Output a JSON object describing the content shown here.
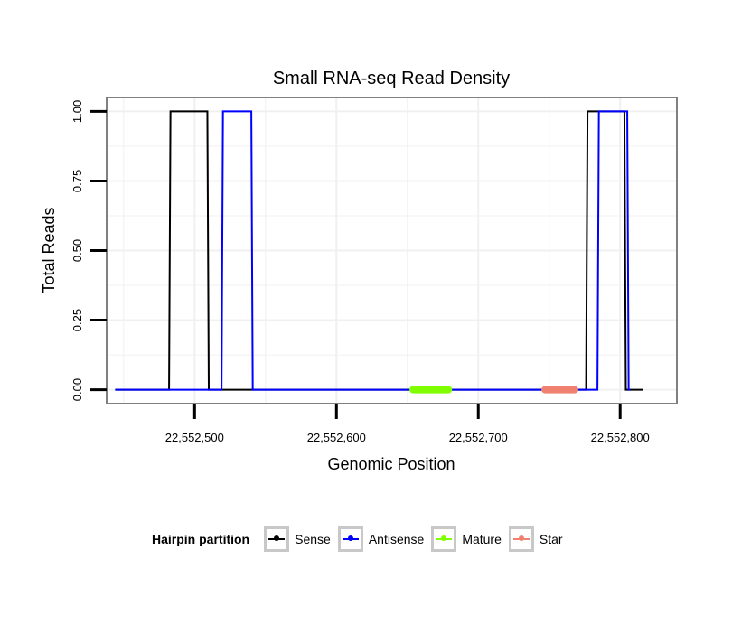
{
  "colors": {
    "sense": "#000000",
    "antisense": "#0000ff",
    "mature": "#7fff00",
    "star": "#f08070",
    "panel_border": "#808080",
    "grid": "#f0f0f0",
    "legend_key_border": "#c8c8c8"
  },
  "chart_data": {
    "type": "line",
    "title": "Small RNA-seq Read Density",
    "xlabel": "Genomic Position",
    "ylabel": "Total Reads",
    "xlim": [
      22552438,
      22552840
    ],
    "ylim": [
      -0.05,
      1.05
    ],
    "x_ticks": [
      22552500,
      22552600,
      22552700,
      22552800
    ],
    "x_tick_labels": [
      "22,552,500",
      "22,552,600",
      "22,552,700",
      "22,552,800"
    ],
    "y_ticks": [
      0,
      0.25,
      0.5,
      0.75,
      1
    ],
    "y_tick_labels": [
      "0.00",
      "0.25",
      "0.50",
      "0.75",
      "1.00"
    ],
    "grid": true,
    "series": [
      {
        "name": "Sense",
        "color_key": "sense",
        "x": [
          22552444,
          22552482,
          22552483,
          22552509,
          22552510,
          22552776,
          22552777,
          22552803,
          22552804,
          22552816
        ],
        "y": [
          0,
          0,
          1,
          1,
          0,
          0,
          1,
          1,
          0,
          0
        ]
      },
      {
        "name": "Antisense",
        "color_key": "antisense",
        "x": [
          22552444,
          22552519,
          22552520,
          22552540,
          22552541,
          22552784,
          22552785,
          22552805,
          22552806,
          22552807
        ],
        "y": [
          0,
          0,
          1,
          1,
          0,
          0,
          1,
          1,
          0,
          0
        ]
      }
    ],
    "segments": [
      {
        "name": "Mature",
        "color_key": "mature",
        "x": [
          22552654,
          22552679
        ],
        "y": 0
      },
      {
        "name": "Star",
        "color_key": "star",
        "x": [
          22552747,
          22552768
        ],
        "y": 0
      }
    ],
    "legend": {
      "title": "Hairpin partition",
      "position": "bottom",
      "items": [
        {
          "label": "Sense",
          "color_key": "sense"
        },
        {
          "label": "Antisense",
          "color_key": "antisense"
        },
        {
          "label": "Mature",
          "color_key": "mature"
        },
        {
          "label": "Star",
          "color_key": "star"
        }
      ]
    }
  }
}
